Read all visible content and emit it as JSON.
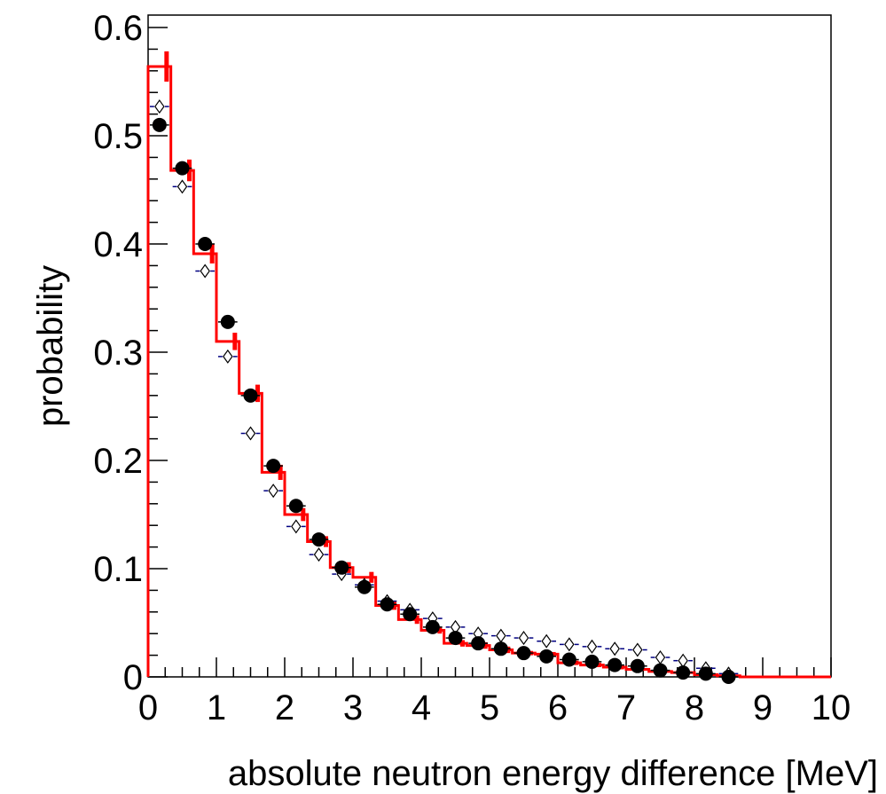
{
  "chart_data": {
    "type": "histogram",
    "x_label": "absolute neutron energy difference [MeV]",
    "y_label": "probability",
    "xlim": [
      0,
      10
    ],
    "ylim": [
      0,
      0.6115
    ],
    "xticks": [
      0,
      1,
      2,
      3,
      4,
      5,
      6,
      7,
      8,
      9,
      10
    ],
    "yticks": [
      0,
      0.1,
      0.2,
      0.3,
      0.4,
      0.5,
      0.6
    ],
    "bins": [
      0,
      0.3333,
      0.6667,
      1,
      1.3333,
      1.6667,
      2,
      2.3333,
      2.6667,
      3,
      3.3333,
      3.6667,
      4,
      4.3333,
      4.6667,
      5,
      5.3333,
      5.6667,
      6,
      6.3333,
      6.6667,
      7,
      7.3333,
      7.6667,
      8,
      8.3333,
      8.6667,
      9,
      9.3333,
      9.6667,
      10
    ],
    "series": [
      {
        "style": "step",
        "color": "#ff0000",
        "values": [
          0.564,
          0.468,
          0.391,
          0.31,
          0.262,
          0.189,
          0.15,
          0.125,
          0.101,
          0.092,
          0.066,
          0.053,
          0.043,
          0.031,
          0.029,
          0.025,
          0.022,
          0.021,
          0.013,
          0.011,
          0.009,
          0.007,
          0.005,
          0.004,
          0.002,
          0.001,
          0,
          0,
          0,
          0
        ],
        "errors": [
          0.014,
          0.01,
          0.009,
          0.008,
          0.008,
          0.007,
          0.006,
          0.005,
          0.005,
          0.005,
          0.004,
          0.004,
          0.003,
          0.003,
          0.003,
          0.003,
          0.002,
          0.002,
          0.002,
          0.002,
          0.002,
          0.001,
          0.001,
          0.001,
          0.001,
          0.001,
          0,
          0,
          0,
          0
        ]
      },
      {
        "style": "diamond",
        "color": "#000080",
        "values": [
          0.527,
          0.453,
          0.375,
          0.296,
          0.225,
          0.172,
          0.139,
          0.113,
          0.095,
          0.085,
          0.07,
          0.062,
          0.054,
          0.046,
          0.04,
          0.038,
          0.036,
          0.033,
          0.03,
          0.028,
          0.026,
          0.025,
          0.018,
          0.015,
          0.008,
          0.003
        ]
      },
      {
        "style": "dot",
        "color": "#000000",
        "values": [
          0.51,
          0.47,
          0.4,
          0.328,
          0.26,
          0.195,
          0.158,
          0.127,
          0.101,
          0.083,
          0.067,
          0.058,
          0.046,
          0.036,
          0.031,
          0.026,
          0.022,
          0.019,
          0.016,
          0.014,
          0.011,
          0.01,
          0.006,
          0.004,
          0.003,
          0.0
        ]
      }
    ]
  }
}
